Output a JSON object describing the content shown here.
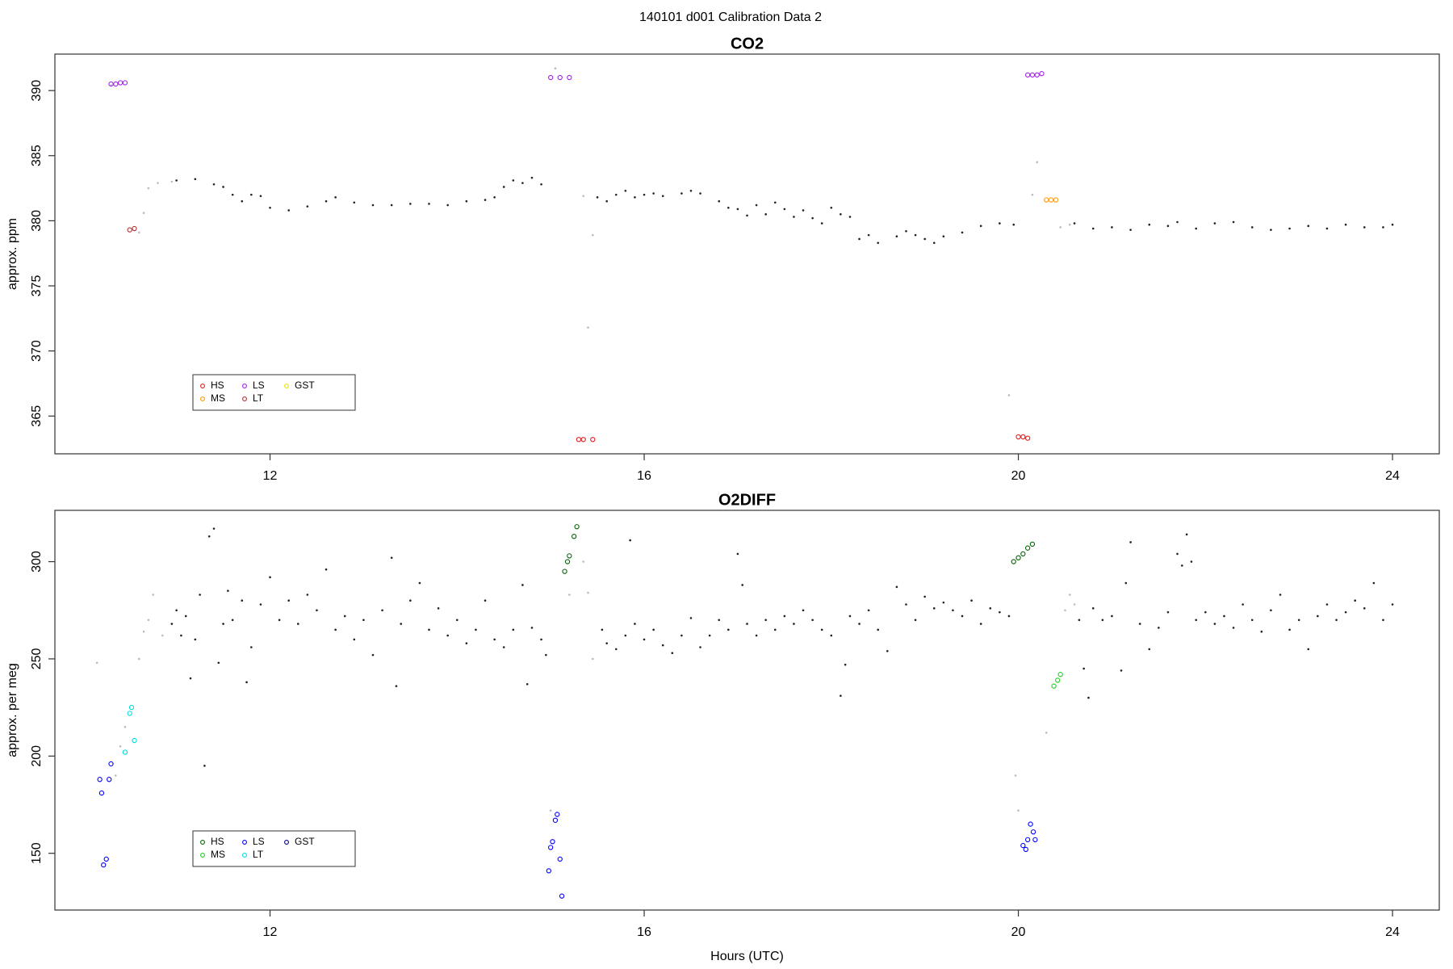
{
  "title": "140101   d001   Calibration Data 2",
  "chart_data": [
    {
      "type": "scatter",
      "title": "CO2",
      "ylabel": "approx. ppm",
      "xlim": [
        9.7,
        24.5
      ],
      "xticks": [
        12,
        16,
        20,
        24
      ],
      "ylim": [
        362.1,
        392.8
      ],
      "yticks": [
        365,
        370,
        375,
        380,
        385,
        390
      ],
      "legend": "lower-left",
      "series": [
        {
          "color": "#222222",
          "x": [
            11.0,
            11.2,
            11.4,
            11.5,
            11.6,
            11.7,
            11.8,
            11.9,
            12.0,
            12.2,
            12.4,
            12.6,
            12.7,
            12.9,
            13.1,
            13.3,
            13.5,
            13.7,
            13.9,
            14.1,
            14.3,
            14.4,
            14.5,
            14.6,
            14.7,
            14.8,
            14.9,
            15.5,
            15.6,
            15.7,
            15.8,
            15.9,
            16.0,
            16.1,
            16.2,
            16.4,
            16.5,
            16.6,
            16.8,
            16.9,
            17.0,
            17.1,
            17.2,
            17.3,
            17.4,
            17.5,
            17.6,
            17.7,
            17.8,
            17.9,
            18.0,
            18.1,
            18.2,
            18.3,
            18.4,
            18.5,
            18.7,
            18.8,
            18.9,
            19.0,
            19.1,
            19.2,
            19.4,
            19.6,
            19.8,
            19.95,
            20.6,
            20.8,
            21.0,
            21.2,
            21.4,
            21.6,
            21.7,
            21.9,
            22.1,
            22.3,
            22.5,
            22.7,
            22.9,
            23.1,
            23.3,
            23.5,
            23.7,
            23.9,
            24.0
          ],
          "values": [
            383.1,
            383.2,
            382.8,
            382.6,
            382.0,
            381.5,
            382.0,
            381.9,
            381.0,
            380.8,
            381.1,
            381.5,
            381.8,
            381.4,
            381.2,
            381.2,
            381.3,
            381.3,
            381.2,
            381.5,
            381.6,
            381.8,
            382.6,
            383.1,
            382.9,
            383.3,
            382.8,
            381.8,
            381.5,
            382.0,
            382.3,
            381.8,
            382.0,
            382.1,
            381.9,
            382.1,
            382.3,
            382.1,
            381.5,
            381.0,
            380.9,
            380.4,
            381.2,
            380.5,
            381.4,
            380.9,
            380.3,
            380.8,
            380.2,
            379.8,
            381.0,
            380.5,
            380.3,
            378.6,
            378.9,
            378.3,
            378.8,
            379.2,
            378.9,
            378.6,
            378.3,
            378.8,
            379.1,
            379.6,
            379.8,
            379.7,
            379.8,
            379.4,
            379.5,
            379.3,
            379.7,
            379.6,
            379.9,
            379.4,
            379.8,
            379.9,
            379.5,
            379.3,
            379.4,
            379.6,
            379.4,
            379.7,
            379.5,
            379.5,
            379.7
          ]
        },
        {
          "color": "#bbbbbb",
          "x": [
            10.3,
            10.6,
            10.65,
            10.7,
            10.8,
            10.95,
            15.05,
            15.35,
            15.4,
            15.45,
            19.9,
            20.15,
            20.2,
            20.45,
            20.55
          ],
          "values": [
            390.4,
            379.1,
            380.6,
            382.5,
            382.9,
            383.0,
            391.7,
            381.9,
            371.8,
            378.9,
            366.6,
            382.0,
            384.5,
            379.5,
            379.7
          ]
        },
        {
          "name": "HS",
          "color": "#e41a1c",
          "x": [
            15.3,
            15.35,
            15.45,
            20.0,
            20.05,
            20.1
          ],
          "values": [
            363.2,
            363.2,
            363.2,
            363.4,
            363.4,
            363.3
          ]
        },
        {
          "name": "MS",
          "color": "#ff9900",
          "x": [
            20.3,
            20.35,
            20.4
          ],
          "values": [
            381.6,
            381.6,
            381.6
          ]
        },
        {
          "name": "LS",
          "color": "#a020f0",
          "x": [
            10.3,
            10.35,
            10.4,
            10.45,
            15.0,
            15.1,
            15.2,
            20.1,
            20.15,
            20.2,
            20.25
          ],
          "values": [
            390.5,
            390.5,
            390.6,
            390.6,
            391.0,
            391.0,
            391.0,
            391.2,
            391.2,
            391.2,
            391.3
          ]
        },
        {
          "name": "LT",
          "color": "#b03030",
          "x": [
            10.5,
            10.55
          ],
          "values": [
            379.3,
            379.4
          ]
        },
        {
          "name": "GST",
          "color": "#e6e600",
          "x": [],
          "values": []
        }
      ]
    },
    {
      "type": "scatter",
      "title": "O2DIFF",
      "ylabel": "approx. per meg",
      "xlabel": "Hours (UTC)",
      "xlim": [
        9.7,
        24.5
      ],
      "xticks": [
        12,
        16,
        20,
        24
      ],
      "ylim": [
        120.8,
        326.4
      ],
      "yticks": [
        150,
        200,
        250,
        300
      ],
      "legend": "lower-left",
      "series": [
        {
          "color": "#222222",
          "x": [
            10.95,
            11.0,
            11.05,
            11.1,
            11.15,
            11.2,
            11.25,
            11.3,
            11.35,
            11.4,
            11.45,
            11.5,
            11.55,
            11.6,
            11.7,
            11.75,
            11.8,
            11.9,
            12.0,
            12.1,
            12.2,
            12.3,
            12.4,
            12.5,
            12.6,
            12.7,
            12.8,
            12.9,
            13.0,
            13.1,
            13.2,
            13.3,
            13.35,
            13.4,
            13.5,
            13.6,
            13.7,
            13.8,
            13.9,
            14.0,
            14.1,
            14.2,
            14.3,
            14.4,
            14.5,
            14.6,
            14.7,
            14.75,
            14.8,
            14.9,
            14.95,
            15.55,
            15.6,
            15.7,
            15.8,
            15.85,
            15.9,
            16.0,
            16.1,
            16.2,
            16.3,
            16.4,
            16.5,
            16.6,
            16.7,
            16.8,
            16.9,
            17.0,
            17.05,
            17.1,
            17.2,
            17.3,
            17.4,
            17.5,
            17.6,
            17.7,
            17.8,
            17.9,
            18.0,
            18.1,
            18.15,
            18.2,
            18.3,
            18.4,
            18.5,
            18.6,
            18.7,
            18.8,
            18.9,
            19.0,
            19.1,
            19.2,
            19.3,
            19.4,
            19.5,
            19.6,
            19.7,
            19.8,
            19.9,
            20.65,
            20.7,
            20.75,
            20.8,
            20.9,
            21.0,
            21.1,
            21.15,
            21.2,
            21.3,
            21.4,
            21.5,
            21.6,
            21.7,
            21.75,
            21.8,
            21.85,
            21.9,
            22.0,
            22.1,
            22.2,
            22.3,
            22.4,
            22.5,
            22.6,
            22.7,
            22.8,
            22.9,
            23.0,
            23.1,
            23.2,
            23.3,
            23.4,
            23.5,
            23.6,
            23.7,
            23.8,
            23.9,
            24.0
          ],
          "values": [
            268,
            275,
            262,
            272,
            240,
            260,
            283,
            195,
            313,
            317,
            248,
            268,
            285,
            270,
            280,
            238,
            256,
            278,
            292,
            270,
            280,
            268,
            283,
            275,
            296,
            265,
            272,
            260,
            270,
            252,
            275,
            302,
            236,
            268,
            280,
            289,
            265,
            276,
            262,
            270,
            258,
            265,
            280,
            260,
            256,
            265,
            288,
            237,
            266,
            260,
            252,
            265,
            258,
            255,
            262,
            311,
            268,
            260,
            265,
            257,
            253,
            262,
            271,
            256,
            262,
            270,
            265,
            304,
            288,
            268,
            262,
            270,
            265,
            272,
            268,
            275,
            270,
            265,
            262,
            231,
            247,
            272,
            268,
            275,
            265,
            254,
            287,
            278,
            270,
            282,
            276,
            279,
            275,
            272,
            280,
            268,
            276,
            274,
            272,
            270,
            245,
            230,
            276,
            270,
            272,
            244,
            289,
            310,
            268,
            255,
            266,
            274,
            304,
            298,
            314,
            300,
            270,
            274,
            268,
            272,
            266,
            278,
            270,
            264,
            275,
            283,
            265,
            270,
            255,
            272,
            278,
            270,
            274,
            280,
            276,
            289,
            270,
            278
          ]
        },
        {
          "color": "#bbbbbb",
          "x": [
            10.15,
            10.35,
            10.4,
            10.45,
            10.6,
            10.65,
            10.7,
            10.75,
            10.85,
            15.0,
            15.2,
            15.35,
            15.4,
            15.45,
            19.97,
            20.0,
            20.3,
            20.5,
            20.55,
            20.6
          ],
          "values": [
            248,
            190,
            205,
            215,
            250,
            264,
            270,
            283,
            262,
            172,
            283,
            300,
            284,
            250,
            190,
            172,
            212,
            275,
            283,
            278
          ]
        },
        {
          "name": "HS",
          "color": "#006400",
          "x": [
            15.15,
            15.18,
            15.2,
            15.25,
            15.28,
            19.95,
            20.0,
            20.05,
            20.1,
            20.15
          ],
          "values": [
            295,
            300,
            303,
            313,
            318,
            300,
            302,
            304,
            307,
            309
          ]
        },
        {
          "name": "MS",
          "color": "#22cc22",
          "x": [
            20.38,
            20.42,
            20.45
          ],
          "values": [
            236,
            239,
            242
          ]
        },
        {
          "name": "LS",
          "color": "#0000ff",
          "x": [
            10.18,
            10.2,
            10.22,
            10.25,
            10.28,
            10.3,
            14.98,
            15.0,
            15.02,
            15.05,
            15.07,
            15.1,
            15.12,
            20.05,
            20.08,
            20.1,
            20.13,
            20.16,
            20.18
          ],
          "values": [
            188,
            181,
            144,
            147,
            188,
            196,
            141,
            153,
            156,
            167,
            170,
            147,
            128,
            154,
            152,
            157,
            165,
            161,
            157
          ]
        },
        {
          "name": "LT",
          "color": "#00dddd",
          "x": [
            10.45,
            10.5,
            10.52,
            10.55
          ],
          "values": [
            202,
            222,
            225,
            208
          ]
        },
        {
          "name": "GST",
          "color": "#000080",
          "x": [],
          "values": []
        }
      ]
    }
  ]
}
